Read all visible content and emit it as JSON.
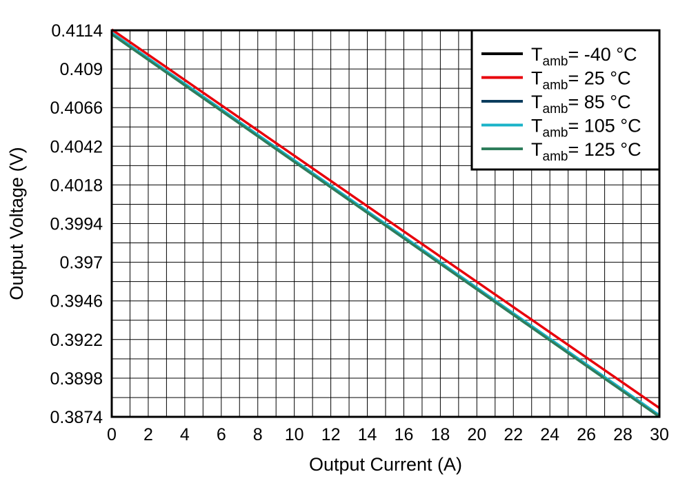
{
  "chart_data": {
    "type": "line",
    "xlabel": "Output Current (A)",
    "ylabel": "Output Voltage (V)",
    "xlim": [
      0,
      30
    ],
    "ylim": [
      0.3874,
      0.4114
    ],
    "x_ticks": [
      "0",
      "2",
      "4",
      "6",
      "8",
      "10",
      "12",
      "14",
      "16",
      "18",
      "20",
      "22",
      "24",
      "26",
      "28",
      "30"
    ],
    "y_ticks": [
      "0.3874",
      "0.3898",
      "0.3922",
      "0.3946",
      "0.397",
      "0.3994",
      "0.4018",
      "0.4042",
      "0.4066",
      "0.409",
      "0.4114"
    ],
    "grid": true,
    "legend_position": "top-right",
    "legend_prefix": "T",
    "legend_subscript": "amb",
    "series": [
      {
        "name": "-40 °C",
        "label": "= -40 °C",
        "color": "#000000",
        "x": [
          0,
          30
        ],
        "y": [
          0.41125,
          0.38745
        ]
      },
      {
        "name": "25 °C",
        "label": "= 25 °C",
        "color": "#e8000b",
        "x": [
          0,
          30
        ],
        "y": [
          0.41145,
          0.38795
        ]
      },
      {
        "name": "85 °C",
        "label": "= 85 °C",
        "color": "#0b3c5d",
        "x": [
          0,
          30
        ],
        "y": [
          0.4112,
          0.38745
        ]
      },
      {
        "name": "105 °C",
        "label": "= 105 °C",
        "color": "#1ab3c8",
        "x": [
          0,
          30
        ],
        "y": [
          0.41125,
          0.3875
        ]
      },
      {
        "name": "125 °C",
        "label": "= 125 °C",
        "color": "#2e7d5b",
        "x": [
          0,
          30
        ],
        "y": [
          0.41115,
          0.3874
        ]
      }
    ]
  }
}
